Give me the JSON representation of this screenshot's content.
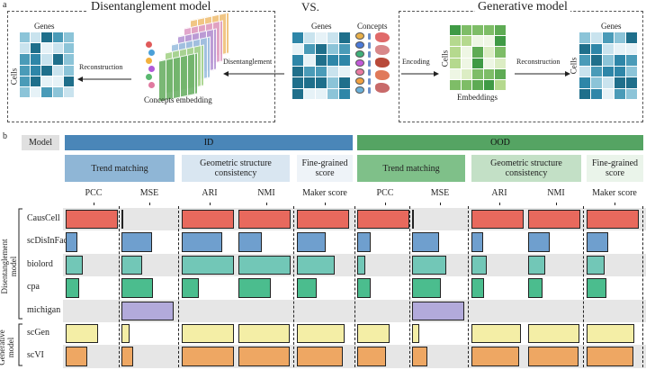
{
  "panel_a": {
    "letter": "a",
    "disentanglement_title": "Disentanglement model",
    "vs": "VS.",
    "generative_title": "Generative model",
    "genes": "Genes",
    "cells": "Cells",
    "concepts": "Concepts",
    "reconstruction": "Reconstruction",
    "disentanglement": "Disentanglement",
    "concepts_embedding": "Concepts embedding",
    "encoding": "Encoding",
    "embeddings": "Embeddings"
  },
  "panel_b": {
    "letter": "b",
    "model_label": "Model",
    "id_label": "ID",
    "ood_label": "OOD",
    "trend_matching": "Trend matching",
    "geometric": "Geometric structure consistency",
    "fine_grained": "Fine-grained score",
    "metrics": [
      "PCC",
      "MSE",
      "ARI",
      "NMI",
      "Maker score",
      "PCC",
      "MSE",
      "ARI",
      "NMI",
      "Maker score"
    ],
    "disentanglement_group": "Disentanglement model",
    "generative_group": "Generative model",
    "models": [
      "CausCell",
      "scDisInFact",
      "biolord",
      "cpa",
      "michigan",
      "scGen",
      "scVI"
    ]
  },
  "colors": {
    "id_header": "#4a86b8",
    "ood_header": "#55a463",
    "CausCell": "#e8695d",
    "scDisInFact": "#6f9fce",
    "biolord": "#72c7b7",
    "cpa": "#4bbd8e",
    "michigan": "#b2aadb",
    "scGen": "#f4eea6",
    "scVI": "#eea763"
  },
  "chart_data": {
    "type": "bar",
    "categories": [
      "CausCell",
      "scDisInFact",
      "biolord",
      "cpa",
      "michigan",
      "scGen",
      "scVI"
    ],
    "panels": [
      {
        "name": "PCC",
        "values": [
          1.0,
          0.22,
          0.32,
          0.25,
          null,
          0.62,
          0.42
        ]
      },
      {
        "name": "MSE",
        "values": [
          0.02,
          0.58,
          0.4,
          0.6,
          1.0,
          0.15,
          0.22
        ]
      },
      {
        "name": "ARI",
        "values": [
          1.0,
          0.78,
          1.0,
          0.32,
          null,
          1.0,
          1.0
        ]
      },
      {
        "name": "NMI",
        "values": [
          1.0,
          0.45,
          1.0,
          0.62,
          null,
          0.98,
          0.98
        ]
      },
      {
        "name": "Maker score",
        "values": [
          1.0,
          0.55,
          0.72,
          0.38,
          null,
          0.92,
          0.88
        ]
      },
      {
        "name": "PCC",
        "values": [
          1.0,
          0.25,
          0.15,
          0.25,
          null,
          0.62,
          0.55
        ]
      },
      {
        "name": "MSE",
        "values": [
          0.02,
          0.52,
          0.65,
          0.55,
          1.0,
          0.14,
          0.3
        ]
      },
      {
        "name": "ARI",
        "values": [
          1.0,
          0.22,
          0.3,
          0.24,
          null,
          0.95,
          0.92
        ]
      },
      {
        "name": "NMI",
        "values": [
          1.0,
          0.42,
          0.32,
          0.28,
          null,
          0.98,
          0.96
        ]
      },
      {
        "name": "Maker score",
        "values": [
          1.0,
          0.42,
          0.35,
          0.38,
          null,
          0.92,
          0.9
        ]
      }
    ]
  }
}
